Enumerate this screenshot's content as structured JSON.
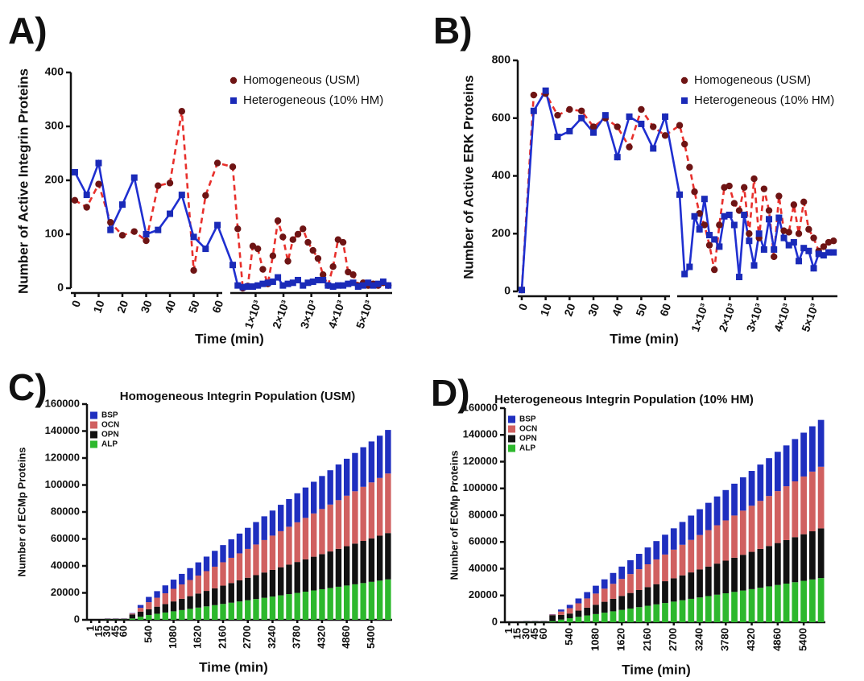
{
  "chart_data": [
    {
      "type": "line",
      "label": "A)",
      "y_label": "Number of Active Integrin Proteins",
      "x_label": "Time (min)",
      "x": [
        0,
        5,
        10,
        15,
        20,
        25,
        30,
        35,
        40,
        45,
        50,
        55,
        60,
        180,
        360,
        540,
        720,
        900,
        1080,
        1260,
        1440,
        1620,
        1800,
        1980,
        2160,
        2340,
        2520,
        2700,
        2880,
        3060,
        3240,
        3420,
        3600,
        3780,
        3960,
        4140,
        4320,
        4500,
        4680,
        4860,
        5040,
        5220,
        5400,
        5580,
        5760
      ],
      "series": [
        {
          "name": "Homogeneous (USM)",
          "color": "#e8302c",
          "marker_color": "#6e1414",
          "marker": "circle",
          "line_style": "dashed",
          "values": [
            163,
            150,
            193,
            122,
            98,
            105,
            88,
            190,
            195,
            328,
            33,
            172,
            232,
            225,
            110,
            0,
            4,
            78,
            73,
            35,
            8,
            60,
            125,
            95,
            50,
            90,
            100,
            110,
            85,
            70,
            55,
            25,
            5,
            40,
            90,
            85,
            30,
            25,
            5,
            10,
            5,
            8,
            5,
            10,
            5
          ]
        },
        {
          "name": "Heterogeneous (10% HM)",
          "color": "#1f2fd0",
          "marker_color": "#1a2ab8",
          "marker": "square",
          "line_style": "solid",
          "values": [
            215,
            173,
            232,
            108,
            155,
            205,
            100,
            108,
            138,
            173,
            95,
            73,
            117,
            43,
            5,
            2,
            3,
            3,
            5,
            8,
            10,
            12,
            20,
            5,
            8,
            10,
            15,
            5,
            10,
            12,
            15,
            15,
            5,
            3,
            5,
            5,
            8,
            10,
            3,
            5,
            10,
            5,
            8,
            12,
            5
          ]
        }
      ],
      "xlim": [
        [
          -1,
          62
        ],
        [
          150,
          5900
        ]
      ],
      "xticks": [
        0,
        10,
        20,
        30,
        40,
        50,
        60,
        {
          "value": 1000,
          "label": "1×10³"
        },
        {
          "value": 2000,
          "label": "2×10³"
        },
        {
          "value": 3000,
          "label": "3×10³"
        },
        {
          "value": 4000,
          "label": "4×10³"
        },
        {
          "value": 5000,
          "label": "5×10³"
        }
      ],
      "ylim": [
        0,
        400
      ],
      "yticks": [
        0,
        100,
        200,
        300,
        400
      ],
      "legend": "upper right"
    },
    {
      "type": "line",
      "label": "B)",
      "y_label": "Number of Active ERK Proteins",
      "x_label": "Time (min)",
      "x": [
        0,
        5,
        10,
        15,
        20,
        25,
        30,
        35,
        40,
        45,
        50,
        55,
        60,
        180,
        360,
        540,
        720,
        900,
        1080,
        1260,
        1440,
        1620,
        1800,
        1980,
        2160,
        2340,
        2520,
        2700,
        2880,
        3060,
        3240,
        3420,
        3600,
        3780,
        3960,
        4140,
        4320,
        4500,
        4680,
        4860,
        5040,
        5220,
        5400,
        5580,
        5760
      ],
      "series": [
        {
          "name": "Homogeneous (USM)",
          "color": "#e8302c",
          "marker_color": "#6e1414",
          "marker": "circle",
          "line_style": "dashed",
          "values": [
            5,
            680,
            685,
            610,
            630,
            625,
            570,
            600,
            570,
            500,
            630,
            570,
            540,
            575,
            510,
            430,
            345,
            270,
            230,
            160,
            75,
            230,
            360,
            365,
            305,
            280,
            360,
            200,
            390,
            185,
            355,
            280,
            120,
            330,
            210,
            205,
            300,
            200,
            310,
            215,
            185,
            140,
            155,
            170,
            175
          ]
        },
        {
          "name": "Heterogeneous (10% HM)",
          "color": "#1f2fd0",
          "marker_color": "#1a2ab8",
          "marker": "square",
          "line_style": "solid",
          "values": [
            5,
            625,
            695,
            535,
            555,
            600,
            550,
            610,
            465,
            605,
            580,
            495,
            605,
            335,
            60,
            85,
            260,
            215,
            320,
            195,
            180,
            155,
            260,
            265,
            230,
            50,
            265,
            175,
            90,
            200,
            145,
            250,
            145,
            255,
            185,
            160,
            170,
            105,
            150,
            140,
            80,
            130,
            125,
            135,
            135
          ]
        }
      ],
      "xlim": [
        [
          -1,
          62
        ],
        [
          150,
          5900
        ]
      ],
      "xticks": [
        0,
        10,
        20,
        30,
        40,
        50,
        60,
        {
          "value": 1000,
          "label": "1×10³"
        },
        {
          "value": 2000,
          "label": "2×10³"
        },
        {
          "value": 3000,
          "label": "3×10³"
        },
        {
          "value": 4000,
          "label": "4×10³"
        },
        {
          "value": 5000,
          "label": "5×10³"
        }
      ],
      "ylim": [
        0,
        800
      ],
      "yticks": [
        0,
        200,
        400,
        600,
        800
      ],
      "legend": "upper right"
    },
    {
      "type": "bar",
      "stacked": true,
      "label": "C)",
      "title": "Homogeneous Integrin Population (USM)",
      "y_label": "Number of ECMp Proteins",
      "x_label": "Time (min)",
      "categories": [
        "1",
        "15",
        "30",
        "45",
        "60",
        null,
        null,
        "540",
        null,
        null,
        "1080",
        null,
        null,
        "1620",
        null,
        null,
        "2160",
        null,
        null,
        "2700",
        null,
        null,
        "3240",
        null,
        null,
        "3780",
        null,
        null,
        "4320",
        null,
        null,
        "4860",
        null,
        null,
        "5400",
        null,
        null
      ],
      "series": [
        {
          "name": "BSP",
          "color": "#1f2fbf",
          "values": [
            0,
            0,
            100,
            100,
            100,
            300,
            2100,
            3900,
            4880,
            5860,
            6840,
            7820,
            8800,
            9780,
            10760,
            11740,
            12720,
            13700,
            14680,
            15660,
            16640,
            17620,
            18600,
            19580,
            20560,
            21540,
            22520,
            23500,
            24480,
            25460,
            26440,
            27420,
            28400,
            29380,
            30360,
            31340,
            32320
          ]
        },
        {
          "name": "OCN",
          "color": "#d06060",
          "values": [
            0,
            0,
            100,
            100,
            100,
            700,
            2800,
            5300,
            6640,
            7980,
            9320,
            10660,
            12000,
            13340,
            14680,
            16020,
            17360,
            18700,
            20040,
            21380,
            22720,
            24060,
            25400,
            26740,
            28080,
            29420,
            30760,
            32100,
            33440,
            34780,
            36120,
            37460,
            38800,
            40140,
            41480,
            42820,
            44160
          ]
        },
        {
          "name": "OPN",
          "color": "#111111",
          "values": [
            0,
            0,
            600,
            600,
            600,
            3000,
            3800,
            4200,
            5240,
            6280,
            7320,
            8360,
            9400,
            10440,
            11480,
            12520,
            13560,
            14600,
            15640,
            16680,
            17720,
            18760,
            19800,
            20840,
            21880,
            22920,
            23960,
            25000,
            26040,
            27080,
            28120,
            29160,
            30200,
            31240,
            32280,
            33320,
            34360
          ]
        },
        {
          "name": "ALP",
          "color": "#2db82d",
          "values": [
            0,
            0,
            200,
            200,
            200,
            1000,
            2300,
            3600,
            4510,
            5420,
            6330,
            7240,
            8150,
            9060,
            9970,
            10880,
            11790,
            12700,
            13610,
            14520,
            15430,
            16340,
            17250,
            18160,
            19070,
            19980,
            20890,
            21800,
            22710,
            23620,
            24530,
            25440,
            26350,
            27260,
            28170,
            29080,
            29990
          ]
        }
      ],
      "ylim": [
        0,
        160000
      ],
      "yticks": [
        0,
        20000,
        40000,
        60000,
        80000,
        100000,
        120000,
        140000,
        160000
      ],
      "legend": "upper left"
    },
    {
      "type": "bar",
      "stacked": true,
      "label": "D)",
      "title": "Heterogeneous Integrin Population (10% HM)",
      "y_label": "Number of ECMp Proteins",
      "x_label": "Time (min)",
      "categories": [
        "1",
        "15",
        "30",
        "45",
        "60",
        null,
        null,
        "540",
        null,
        null,
        "1080",
        null,
        null,
        "1620",
        null,
        null,
        "2160",
        null,
        null,
        "2700",
        null,
        null,
        "3240",
        null,
        null,
        "3780",
        null,
        null,
        "4320",
        null,
        null,
        "4860",
        null,
        null,
        "5400",
        null,
        null
      ],
      "series": [
        {
          "name": "BSP",
          "color": "#1f2fbf",
          "values": [
            0,
            0,
            100,
            100,
            100,
            200,
            1500,
            2500,
            3620,
            4740,
            5860,
            6980,
            8100,
            9220,
            10340,
            11460,
            12580,
            13700,
            14820,
            15940,
            17060,
            18180,
            19300,
            20420,
            21540,
            22660,
            23780,
            24900,
            26020,
            27140,
            28260,
            29380,
            30500,
            31620,
            32740,
            33860,
            34980
          ]
        },
        {
          "name": "OCN",
          "color": "#d06060",
          "values": [
            0,
            0,
            100,
            100,
            100,
            500,
            2500,
            4000,
            5450,
            6900,
            8350,
            9800,
            11250,
            12700,
            14150,
            15600,
            17050,
            18500,
            19950,
            21400,
            22850,
            24300,
            25750,
            27200,
            28650,
            30100,
            31550,
            33000,
            34450,
            35900,
            37350,
            38800,
            40250,
            41700,
            43150,
            44600,
            46050
          ]
        },
        {
          "name": "OPN",
          "color": "#111111",
          "values": [
            0,
            0,
            600,
            600,
            600,
            4500,
            3500,
            3500,
            4660,
            5820,
            6980,
            8140,
            9300,
            10460,
            11620,
            12780,
            13940,
            15100,
            16260,
            17420,
            18580,
            19740,
            20900,
            22060,
            23220,
            24380,
            25540,
            26700,
            27860,
            29020,
            30180,
            31340,
            32500,
            33660,
            34820,
            35980,
            37140
          ]
        },
        {
          "name": "ALP",
          "color": "#2db82d",
          "values": [
            0,
            0,
            200,
            200,
            200,
            800,
            2000,
            3000,
            4035,
            5070,
            6105,
            7140,
            8175,
            9210,
            10245,
            11280,
            12315,
            13350,
            14385,
            15420,
            16455,
            17490,
            18525,
            19560,
            20595,
            21630,
            22665,
            23700,
            24735,
            25770,
            26805,
            27840,
            28875,
            29910,
            30945,
            31980,
            33015
          ]
        }
      ],
      "ylim": [
        0,
        160000
      ],
      "yticks": [
        0,
        20000,
        40000,
        60000,
        80000,
        100000,
        120000,
        140000,
        160000
      ],
      "legend": "upper left"
    }
  ]
}
